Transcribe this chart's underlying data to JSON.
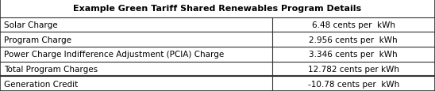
{
  "title": "Example Green Tariff Shared Renewables Program Details",
  "rows": [
    {
      "label": "Solar Charge",
      "value": "6.48 cents per  kWh"
    },
    {
      "label": "Program Charge",
      "value": "2.956 cents per  kWh"
    },
    {
      "label": "Power Charge Indifference Adjustment (PCIA) Charge",
      "value": "3.346 cents per  kWh"
    },
    {
      "label": "Total Program Charges",
      "value": "12.782 cents per kWh"
    },
    {
      "label": "Generation Credit",
      "value": "-10.78 cents per  kWh"
    }
  ],
  "title_bg": "#ffffff",
  "row_bg": "#ffffff",
  "border_color": "#333333",
  "title_fontsize": 8.0,
  "row_fontsize": 7.5,
  "col_split": 0.625,
  "fig_width": 5.48,
  "fig_height": 1.16,
  "dpi": 100
}
